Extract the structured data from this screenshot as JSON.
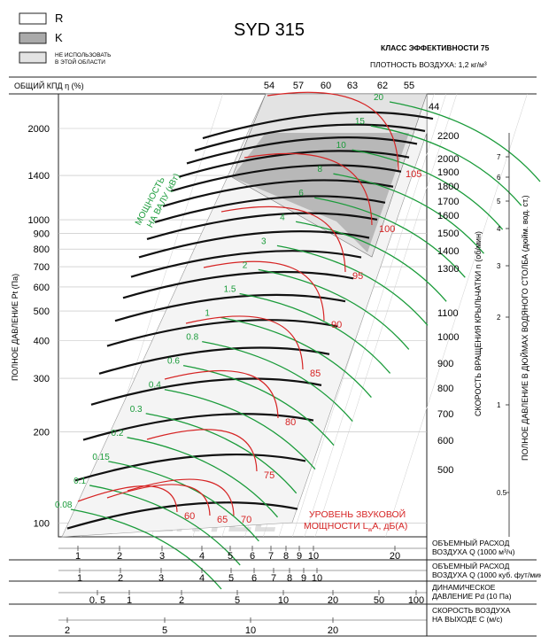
{
  "legend": [
    {
      "label": "R",
      "fill": "#ffffff"
    },
    {
      "label": "K",
      "fill": "#aaaaaa"
    },
    {
      "label": "НЕ ИСПОЛЬЗОВАТЬ\nВ ЭТОЙ ОБЛАСТИ",
      "fill": "#e3e3e3"
    }
  ],
  "header": {
    "model": "SYD 315",
    "efficiency_class": "КЛАСС ЭФФЕКТИВНОСТИ 75",
    "air_density": "ПЛОТНОСТЬ ВОЗДУХА: 1,2 кг/м³",
    "efficiency_label": "ОБЩИЙ КПД η (%)"
  },
  "chart_data": {
    "type": "line",
    "title": "SYD 315",
    "ylabel": "ПОЛНОЕ ДАВЛЕНИЕ Pt (Па)",
    "y_scale": "log",
    "x_scale": "log",
    "ylim": [
      90,
      2600
    ],
    "xlim": [
      0.8,
      30
    ],
    "y_ticks": [
      100,
      200,
      300,
      400,
      500,
      600,
      700,
      800,
      900,
      1000,
      1400,
      2000
    ],
    "efficiency_ticks": [
      "54",
      "57",
      "60",
      "63",
      "62",
      "55"
    ],
    "rpm_label": "СКОРОСТЬ ВРАЩЕНИЯ КРЫЛЬЧАТКИ n (об/мин)",
    "rpm_ticks": [
      "2200",
      "2000",
      "1900",
      "1800",
      "1700",
      "1600",
      "1500",
      "1400",
      "1300",
      "1100",
      "1000",
      "900",
      "800",
      "700",
      "600",
      "500",
      "44"
    ],
    "inch_label": "ПОЛНОЕ ДАВЛЕНИЕ В ДЮЙМАХ ВОДЯНОГО СТОЛБА (дюйм. вод. ст.)",
    "inch_ticks": [
      "7",
      "6",
      "5",
      "4",
      "3",
      "2",
      "1",
      "0.5"
    ],
    "power_label": "МОЩНОСТЬ\nНА ВАЛУ (кВт)",
    "power_values": [
      "0.08",
      "0.1",
      "0.15",
      "0.2",
      "0.3",
      "0.4",
      "0.6",
      "0.8",
      "1",
      "1.5",
      "2",
      "3",
      "4",
      "6",
      "8",
      "10",
      "15",
      "20"
    ],
    "sound_label": "УРОВЕНЬ ЗВУКОВОЙ\nМОЩНОСТИ LwA, дБ(A)",
    "sound_values": [
      "60",
      "65",
      "70",
      "75",
      "80",
      "85",
      "90",
      "95",
      "100",
      "105"
    ],
    "speed_curves_rpm": [
      500,
      600,
      700,
      800,
      900,
      1000,
      1100,
      1200,
      1300,
      1400,
      1500,
      1600,
      1700,
      1800,
      1900,
      2000,
      2100,
      2200
    ],
    "flow_axis": {
      "label": "ОБЪЕМНЫЙ РАСХОД\nВОЗДУХА Q (1000 м³/ч)",
      "ticks": [
        "1",
        "2",
        "3",
        "4",
        "5",
        "6",
        "7",
        "8",
        "9",
        "10",
        "20"
      ]
    },
    "flow_cfm_axis": {
      "label": "ОБЪЕМНЫЙ РАСХОД\nВОЗДУХА Q (1000 куб. фут/мин)",
      "ticks": [
        "1",
        "2",
        "3",
        "4",
        "5",
        "6",
        "7",
        "8",
        "9",
        "10"
      ]
    },
    "dyn_pressure_axis": {
      "label": "ДИНАМИЧЕСКОЕ\nДАВЛЕНИЕ Pd (10 Па)",
      "ticks": [
        "0. 5",
        "1",
        "2",
        "5",
        "10",
        "20",
        "50",
        "100"
      ]
    },
    "velocity_axis": {
      "label": "СКОРОСТЬ ВОЗДУХА\nНА ВЫХОДЕ С (м/с)",
      "ticks": [
        "2",
        "5",
        "10",
        "20"
      ]
    }
  }
}
